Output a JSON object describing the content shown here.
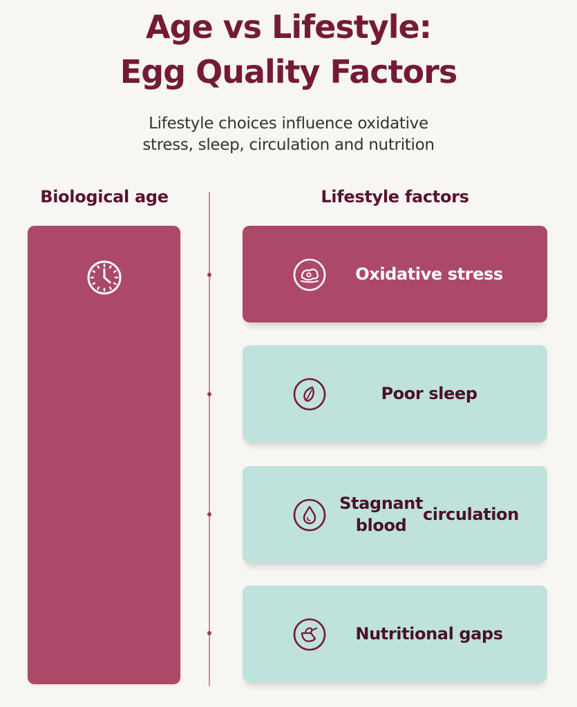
{
  "header": {
    "title_line1": "Age vs Lifestyle:",
    "title_line2": "Egg Quality Factors",
    "subtitle_line1": "Lifestyle choices influence oxidative",
    "subtitle_line2": "stress, sleep, circulation and nutrition"
  },
  "columns": {
    "left_heading": "Biological age",
    "right_heading": "Lifestyle factors"
  },
  "biological_age": {
    "icon": "clock-icon"
  },
  "lifestyle_factors": [
    {
      "label": "Oxidative stress",
      "icon": "molecule-icon"
    },
    {
      "label": "Poor sleep",
      "icon": "moon-leaf-icon"
    },
    {
      "label_line1": "Stagnant blood",
      "label_line2": "circulation",
      "icon": "blood-drop-icon"
    },
    {
      "label": "Nutritional gaps",
      "icon": "food-icon"
    }
  ],
  "colors": {
    "title": "#741a37",
    "dark_card": "#ac4868",
    "light_card": "#bfe2dc",
    "light_card_text": "#4a1226",
    "background": "#f7f6f2"
  }
}
